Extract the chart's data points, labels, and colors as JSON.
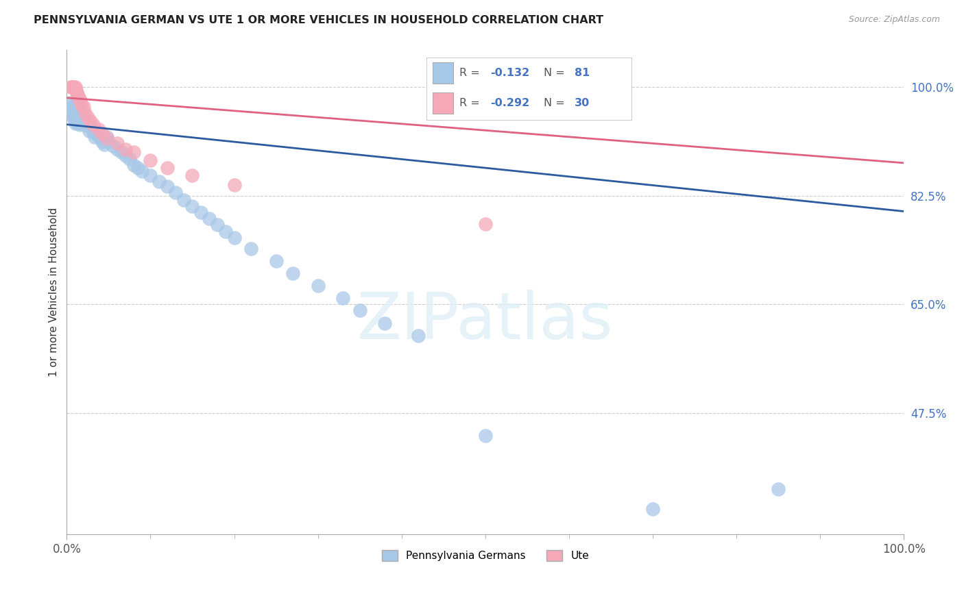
{
  "title": "PENNSYLVANIA GERMAN VS UTE 1 OR MORE VEHICLES IN HOUSEHOLD CORRELATION CHART",
  "source_text": "Source: ZipAtlas.com",
  "ylabel": "1 or more Vehicles in Household",
  "xlim": [
    0.0,
    1.0
  ],
  "ylim": [
    0.28,
    1.06
  ],
  "yticks": [
    0.475,
    0.65,
    0.825,
    1.0
  ],
  "ytick_labels": [
    "47.5%",
    "65.0%",
    "82.5%",
    "100.0%"
  ],
  "xticks": [
    0.0,
    1.0
  ],
  "xtick_labels": [
    "0.0%",
    "100.0%"
  ],
  "blue_R": -0.132,
  "blue_N": 81,
  "pink_R": -0.292,
  "pink_N": 30,
  "blue_color": "#a8c8e8",
  "pink_color": "#f4a8b8",
  "blue_line_color": "#2c5aa0",
  "pink_line_color": "#e06080",
  "legend_label_blue": "Pennsylvania Germans",
  "legend_label_pink": "Ute",
  "watermark_text": "ZIPatlas",
  "blue_trend_y_start": 0.94,
  "blue_trend_y_end": 0.8,
  "pink_trend_y_start": 0.983,
  "pink_trend_y_end": 0.878,
  "blue_points_x": [
    0.005,
    0.006,
    0.007,
    0.007,
    0.008,
    0.008,
    0.008,
    0.009,
    0.009,
    0.009,
    0.01,
    0.01,
    0.01,
    0.01,
    0.011,
    0.011,
    0.012,
    0.012,
    0.013,
    0.013,
    0.013,
    0.014,
    0.014,
    0.015,
    0.015,
    0.015,
    0.016,
    0.016,
    0.017,
    0.018,
    0.018,
    0.019,
    0.02,
    0.02,
    0.021,
    0.022,
    0.023,
    0.025,
    0.026,
    0.027,
    0.028,
    0.03,
    0.032,
    0.033,
    0.035,
    0.037,
    0.04,
    0.042,
    0.045,
    0.048,
    0.05,
    0.055,
    0.06,
    0.065,
    0.07,
    0.075,
    0.08,
    0.085,
    0.09,
    0.1,
    0.11,
    0.12,
    0.13,
    0.14,
    0.15,
    0.16,
    0.17,
    0.18,
    0.19,
    0.2,
    0.22,
    0.25,
    0.27,
    0.3,
    0.33,
    0.35,
    0.38,
    0.42,
    0.5,
    0.7,
    0.85
  ],
  "blue_points_y": [
    0.975,
    0.968,
    0.965,
    0.958,
    0.972,
    0.96,
    0.952,
    0.968,
    0.955,
    0.948,
    0.97,
    0.96,
    0.95,
    0.942,
    0.965,
    0.955,
    0.968,
    0.958,
    0.96,
    0.952,
    0.942,
    0.963,
    0.948,
    0.965,
    0.955,
    0.94,
    0.958,
    0.945,
    0.955,
    0.962,
    0.948,
    0.955,
    0.95,
    0.94,
    0.948,
    0.942,
    0.945,
    0.938,
    0.942,
    0.93,
    0.938,
    0.935,
    0.928,
    0.92,
    0.93,
    0.922,
    0.918,
    0.912,
    0.908,
    0.92,
    0.912,
    0.905,
    0.9,
    0.895,
    0.89,
    0.885,
    0.875,
    0.87,
    0.865,
    0.858,
    0.848,
    0.84,
    0.83,
    0.818,
    0.808,
    0.798,
    0.788,
    0.778,
    0.768,
    0.758,
    0.74,
    0.72,
    0.7,
    0.68,
    0.66,
    0.64,
    0.62,
    0.6,
    0.438,
    0.32,
    0.352
  ],
  "pink_points_x": [
    0.005,
    0.006,
    0.007,
    0.008,
    0.009,
    0.01,
    0.01,
    0.011,
    0.012,
    0.013,
    0.014,
    0.015,
    0.016,
    0.018,
    0.02,
    0.022,
    0.025,
    0.028,
    0.032,
    0.038,
    0.042,
    0.048,
    0.06,
    0.07,
    0.08,
    0.1,
    0.12,
    0.15,
    0.2,
    0.5
  ],
  "pink_points_y": [
    1.0,
    1.0,
    1.0,
    1.0,
    0.998,
    1.0,
    0.998,
    0.995,
    0.992,
    0.988,
    0.985,
    0.982,
    0.978,
    0.972,
    0.968,
    0.958,
    0.952,
    0.945,
    0.94,
    0.932,
    0.925,
    0.918,
    0.91,
    0.9,
    0.895,
    0.882,
    0.87,
    0.858,
    0.842,
    0.78
  ]
}
